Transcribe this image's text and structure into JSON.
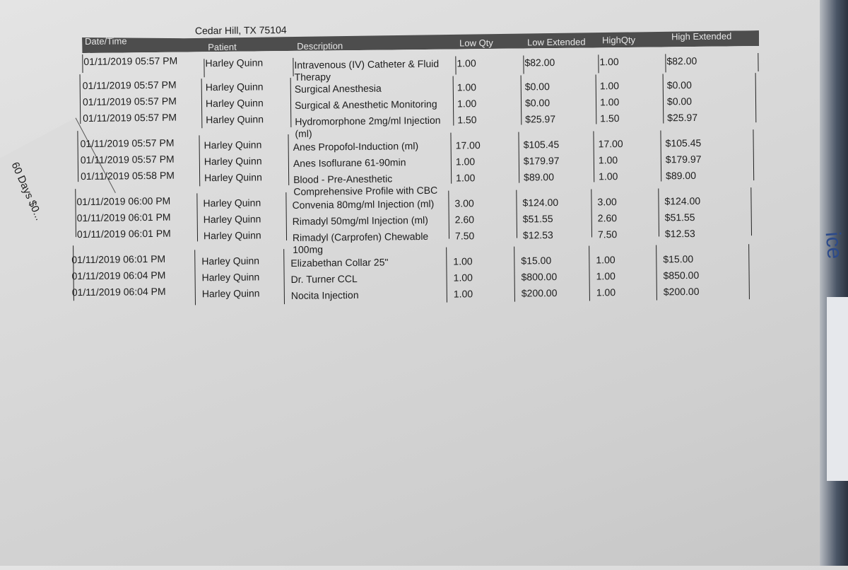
{
  "header": {
    "location": "Cedar Hill, TX 75104"
  },
  "columns": [
    "Date/Time",
    "Patient",
    "Description",
    "Low Qty",
    "Low Extended",
    "HighQty",
    "High Extended"
  ],
  "rows": [
    {
      "datetime": "01/11/2019 05:57 PM",
      "patient": "Harley Quinn",
      "description": "Intravenous (IV) Catheter & Fluid Therapy",
      "low_qty": "1.00",
      "low_extended": "$82.00",
      "high_qty": "1.00",
      "high_extended": "$82.00"
    },
    {
      "datetime": "01/11/2019 05:57 PM",
      "patient": "Harley Quinn",
      "description": "Surgical Anesthesia",
      "low_qty": "1.00",
      "low_extended": "$0.00",
      "high_qty": "1.00",
      "high_extended": "$0.00"
    },
    {
      "datetime": "01/11/2019 05:57 PM",
      "patient": "Harley Quinn",
      "description": "Surgical & Anesthetic Monitoring",
      "low_qty": "1.00",
      "low_extended": "$0.00",
      "high_qty": "1.00",
      "high_extended": "$0.00"
    },
    {
      "datetime": "01/11/2019 05:57 PM",
      "patient": "Harley Quinn",
      "description": "Hydromorphone 2mg/ml Injection (ml)",
      "low_qty": "1.50",
      "low_extended": "$25.97",
      "high_qty": "1.50",
      "high_extended": "$25.97"
    },
    {
      "datetime": "01/11/2019 05:57 PM",
      "patient": "Harley Quinn",
      "description": "Anes Propofol-Induction (ml)",
      "low_qty": "17.00",
      "low_extended": "$105.45",
      "high_qty": "17.00",
      "high_extended": "$105.45"
    },
    {
      "datetime": "01/11/2019 05:57 PM",
      "patient": "Harley Quinn",
      "description": "Anes Isoflurane 61-90min",
      "low_qty": "1.00",
      "low_extended": "$179.97",
      "high_qty": "1.00",
      "high_extended": "$179.97"
    },
    {
      "datetime": "01/11/2019 05:58 PM",
      "patient": "Harley Quinn",
      "description": "Blood - Pre-Anesthetic Comprehensive Profile with CBC",
      "low_qty": "1.00",
      "low_extended": "$89.00",
      "high_qty": "1.00",
      "high_extended": "$89.00"
    },
    {
      "datetime": "01/11/2019 06:00 PM",
      "patient": "Harley Quinn",
      "description": "Convenia 80mg/ml Injection (ml)",
      "low_qty": "3.00",
      "low_extended": "$124.00",
      "high_qty": "3.00",
      "high_extended": "$124.00"
    },
    {
      "datetime": "01/11/2019 06:01 PM",
      "patient": "Harley Quinn",
      "description": "Rimadyl 50mg/ml Injection (ml)",
      "low_qty": "2.60",
      "low_extended": "$51.55",
      "high_qty": "2.60",
      "high_extended": "$51.55"
    },
    {
      "datetime": "01/11/2019 06:01 PM",
      "patient": "Harley Quinn",
      "description": "Rimadyl (Carprofen) Chewable 100mg",
      "low_qty": "7.50",
      "low_extended": "$12.53",
      "high_qty": "7.50",
      "high_extended": "$12.53"
    },
    {
      "datetime": "01/11/2019 06:01 PM",
      "patient": "Harley Quinn",
      "description": "Elizabethan Collar 25\"",
      "low_qty": "1.00",
      "low_extended": "$15.00",
      "high_qty": "1.00",
      "high_extended": "$15.00"
    },
    {
      "datetime": "01/11/2019 06:04 PM",
      "patient": "Harley Quinn",
      "description": "Dr. Turner CCL",
      "low_qty": "1.00",
      "low_extended": "$800.00",
      "high_qty": "1.00",
      "high_extended": "$850.00"
    },
    {
      "datetime": "01/11/2019 06:04 PM",
      "patient": "Harley Quinn",
      "description": "Nocita Injection",
      "low_qty": "1.00",
      "low_extended": "$200.00",
      "high_qty": "1.00",
      "high_extended": "$200.00"
    }
  ],
  "fragments": {
    "left_sheet": "60 Days $0...",
    "right_edge": "ice"
  }
}
